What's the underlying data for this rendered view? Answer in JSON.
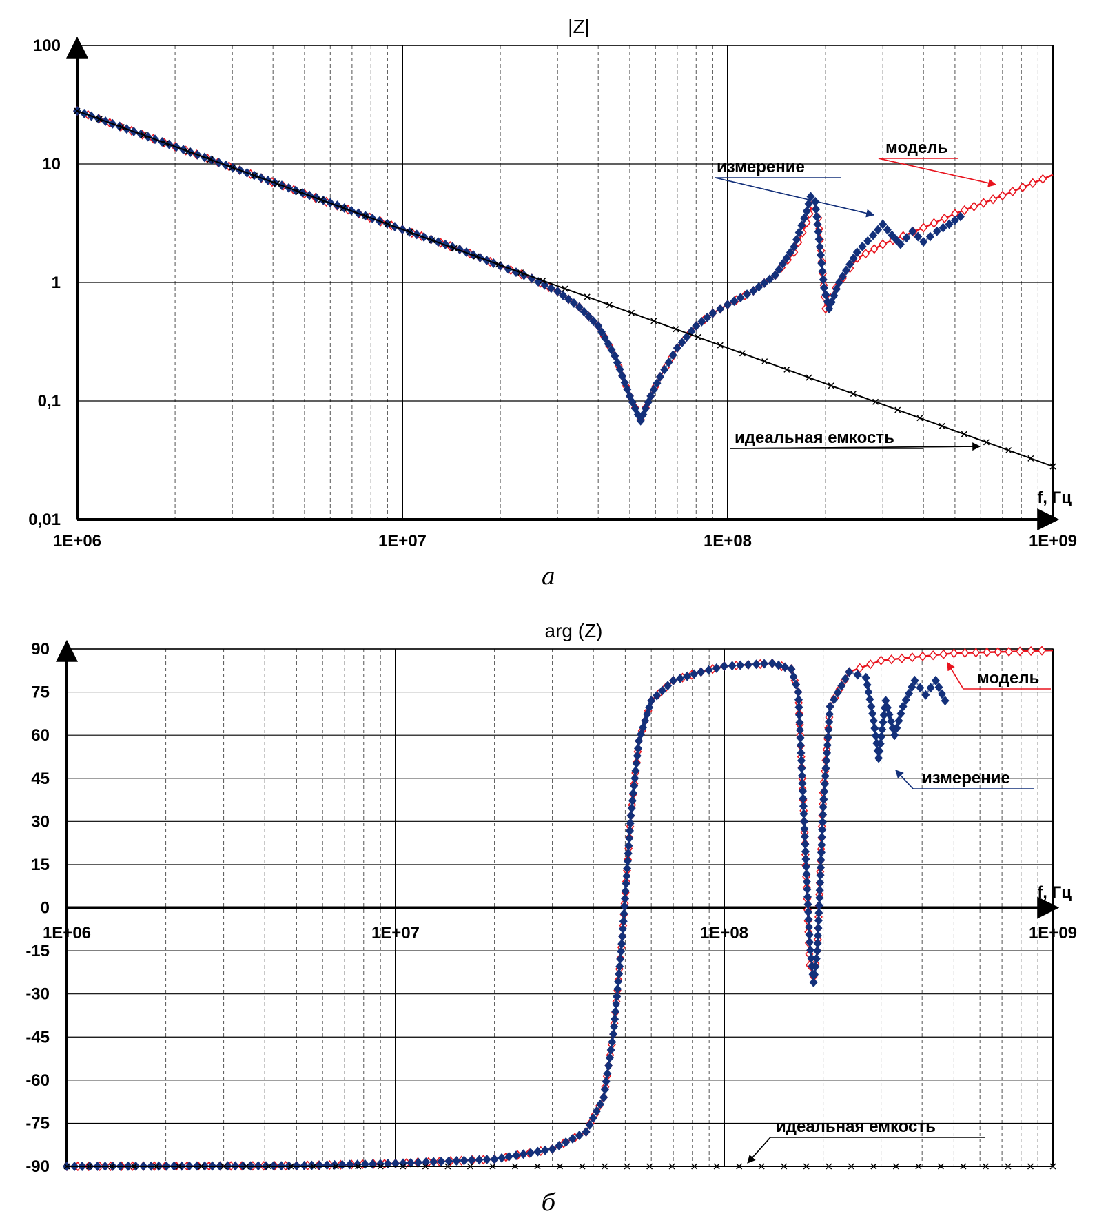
{
  "figure": {
    "captions": [
      "а",
      "б"
    ]
  },
  "chart_data": [
    {
      "type": "line",
      "title": "|Z|",
      "x_axis": {
        "label": "f, Гц",
        "scale": "log",
        "range": [
          1000000,
          1000000000
        ],
        "tick_labels": [
          "1E+06",
          "1E+07",
          "1E+08",
          "1E+09"
        ]
      },
      "y_axis": {
        "scale": "log",
        "range": [
          0.01,
          100
        ],
        "tick_labels": [
          "0,01",
          "0,1",
          "1",
          "10",
          "100"
        ]
      },
      "grid": true,
      "annotations": [
        "модель",
        "измерение",
        "идеальная емкость"
      ],
      "series": [
        {
          "name": "модель",
          "color": "#e8141e",
          "marker": "diamond-open",
          "points": [
            [
              1000000,
              28
            ],
            [
              2000000,
              14
            ],
            [
              5000000,
              5.6
            ],
            [
              10000000,
              2.8
            ],
            [
              15000000,
              1.9
            ],
            [
              20000000,
              1.38
            ],
            [
              25000000,
              1.08
            ],
            [
              30000000,
              0.84
            ],
            [
              35000000,
              0.62
            ],
            [
              40000000,
              0.43
            ],
            [
              45000000,
              0.24
            ],
            [
              50000000,
              0.11
            ],
            [
              54000000,
              0.07
            ],
            [
              58000000,
              0.11
            ],
            [
              62000000,
              0.16
            ],
            [
              70000000,
              0.28
            ],
            [
              80000000,
              0.43
            ],
            [
              90000000,
              0.55
            ],
            [
              100000000,
              0.65
            ],
            [
              120000000,
              0.85
            ],
            [
              140000000,
              1.15
            ],
            [
              160000000,
              1.8
            ],
            [
              175000000,
              3.2
            ],
            [
              182000000,
              4.5
            ],
            [
              190000000,
              3.5
            ],
            [
              195000000,
              1.5
            ],
            [
              200000000,
              0.6
            ],
            [
              215000000,
              0.9
            ],
            [
              250000000,
              1.6
            ],
            [
              300000000,
              2.1
            ],
            [
              400000000,
              2.9
            ],
            [
              500000000,
              3.8
            ],
            [
              700000000,
              5.4
            ],
            [
              1000000000,
              8.1
            ]
          ]
        },
        {
          "name": "измерение",
          "color": "#13307a",
          "marker": "diamond-filled",
          "points": [
            [
              1000000,
              28
            ],
            [
              3500000,
              8
            ],
            [
              6000000,
              4.7
            ],
            [
              8500000,
              3.3
            ],
            [
              10000000,
              2.8
            ],
            [
              15000000,
              1.9
            ],
            [
              20000000,
              1.38
            ],
            [
              25000000,
              1.08
            ],
            [
              30000000,
              0.84
            ],
            [
              35000000,
              0.62
            ],
            [
              40000000,
              0.43
            ],
            [
              45000000,
              0.24
            ],
            [
              50000000,
              0.11
            ],
            [
              54000000,
              0.068
            ],
            [
              58000000,
              0.11
            ],
            [
              62000000,
              0.16
            ],
            [
              70000000,
              0.28
            ],
            [
              80000000,
              0.43
            ],
            [
              90000000,
              0.55
            ],
            [
              100000000,
              0.65
            ],
            [
              120000000,
              0.85
            ],
            [
              140000000,
              1.15
            ],
            [
              160000000,
              2
            ],
            [
              175000000,
              4
            ],
            [
              180000000,
              5.3
            ],
            [
              186000000,
              4.8
            ],
            [
              192000000,
              2
            ],
            [
              198000000,
              0.9
            ],
            [
              205000000,
              0.6
            ],
            [
              220000000,
              1
            ],
            [
              250000000,
              1.8
            ],
            [
              280000000,
              2.5
            ],
            [
              300000000,
              3.1
            ],
            [
              320000000,
              2.5
            ],
            [
              340000000,
              2.1
            ],
            [
              370000000,
              2.7
            ],
            [
              400000000,
              2.2
            ],
            [
              440000000,
              2.7
            ],
            [
              480000000,
              3.1
            ],
            [
              520000000,
              3.6
            ]
          ]
        },
        {
          "name": "идеальная емкость",
          "color": "#000000",
          "marker": "x",
          "points": [
            [
              1000000,
              28
            ],
            [
              10000000,
              2.8
            ],
            [
              100000000,
              0.28
            ],
            [
              1000000000,
              0.028
            ]
          ]
        }
      ]
    },
    {
      "type": "line",
      "title": "arg (Z)",
      "x_axis": {
        "label": "f, Гц",
        "scale": "log",
        "range": [
          1000000,
          1000000000
        ],
        "tick_labels": [
          "1E+06",
          "1E+07",
          "1E+08",
          "1E+09"
        ]
      },
      "y_axis": {
        "scale": "linear",
        "range": [
          -90,
          90
        ],
        "tick_labels": [
          "90",
          "75",
          "60",
          "45",
          "30",
          "15",
          "0",
          "-15",
          "-30",
          "-45",
          "-60",
          "-75",
          "-90"
        ]
      },
      "grid": true,
      "annotations": [
        "модель",
        "измерение",
        "идеальная емкость"
      ],
      "series": [
        {
          "name": "модель",
          "color": "#e8141e",
          "marker": "diamond-open",
          "points": [
            [
              1000000,
              -90
            ],
            [
              5000000,
              -89.8
            ],
            [
              10000000,
              -89
            ],
            [
              20000000,
              -87.5
            ],
            [
              30000000,
              -84
            ],
            [
              38000000,
              -78
            ],
            [
              43000000,
              -66
            ],
            [
              46000000,
              -44
            ],
            [
              49000000,
              -10
            ],
            [
              52000000,
              32
            ],
            [
              55000000,
              58
            ],
            [
              60000000,
              72
            ],
            [
              70000000,
              79
            ],
            [
              85000000,
              82
            ],
            [
              100000000,
              84
            ],
            [
              140000000,
              85
            ],
            [
              160000000,
              83
            ],
            [
              168000000,
              75
            ],
            [
              175000000,
              30
            ],
            [
              182000000,
              -20
            ],
            [
              187000000,
              -24
            ],
            [
              192000000,
              -15
            ],
            [
              200000000,
              40
            ],
            [
              210000000,
              70
            ],
            [
              240000000,
              82
            ],
            [
              300000000,
              86
            ],
            [
              500000000,
              88.5
            ],
            [
              1000000000,
              89.5
            ]
          ]
        },
        {
          "name": "измерение",
          "color": "#13307a",
          "marker": "diamond-filled",
          "points": [
            [
              1000000,
              -90
            ],
            [
              5000000,
              -89.8
            ],
            [
              10000000,
              -89
            ],
            [
              20000000,
              -87.5
            ],
            [
              30000000,
              -84
            ],
            [
              38000000,
              -78
            ],
            [
              43000000,
              -66
            ],
            [
              46000000,
              -44
            ],
            [
              49000000,
              -10
            ],
            [
              52000000,
              32
            ],
            [
              55000000,
              58
            ],
            [
              60000000,
              72
            ],
            [
              70000000,
              79
            ],
            [
              85000000,
              82
            ],
            [
              100000000,
              84
            ],
            [
              140000000,
              85
            ],
            [
              160000000,
              83
            ],
            [
              168000000,
              75
            ],
            [
              175000000,
              30
            ],
            [
              182000000,
              -12
            ],
            [
              187000000,
              -26
            ],
            [
              192000000,
              -15
            ],
            [
              200000000,
              35
            ],
            [
              210000000,
              70
            ],
            [
              240000000,
              82
            ],
            [
              270000000,
              80
            ],
            [
              285000000,
              65
            ],
            [
              295000000,
              52
            ],
            [
              310000000,
              72
            ],
            [
              330000000,
              60
            ],
            [
              350000000,
              70
            ],
            [
              380000000,
              79
            ],
            [
              410000000,
              74
            ],
            [
              440000000,
              79
            ],
            [
              470000000,
              72
            ]
          ]
        },
        {
          "name": "идеальная емкость",
          "color": "#000000",
          "marker": "x",
          "points": [
            [
              1000000,
              -90
            ],
            [
              1000000000,
              -90
            ]
          ]
        }
      ]
    }
  ]
}
